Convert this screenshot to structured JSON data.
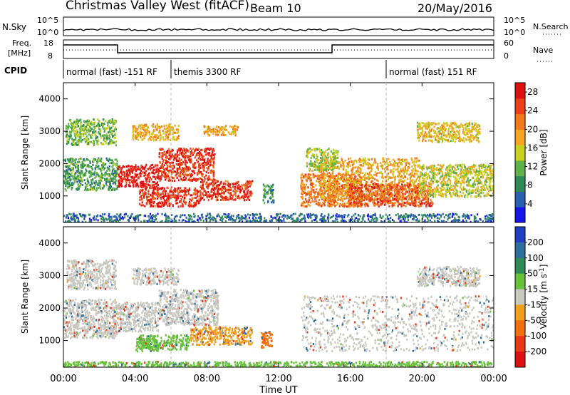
{
  "header": {
    "title": "Christmas Valley West (fitACF)",
    "beam": "Beam 10",
    "date": "20/May/2016"
  },
  "side_labels": {
    "nsky": "N.Sky",
    "nsearch": "N.Search",
    "freq_line1": "Freq.",
    "freq_line2": "[MHz]",
    "nave": "Nave",
    "cpid": "CPID"
  },
  "noise_ticks": {
    "top": "10^5",
    "bottom": "10^0"
  },
  "freq_ticks": {
    "left_top": "18",
    "left_bottom": "8",
    "right_top": "60",
    "right_bottom": "0"
  },
  "cpid_segments": [
    {
      "label": "normal (fast) -151 RF",
      "start_hour": 0,
      "end_hour": 6
    },
    {
      "label": "themis 3300 RF",
      "start_hour": 6,
      "end_hour": 18
    },
    {
      "label": "normal (fast) 151 RF",
      "start_hour": 18,
      "end_hour": 24
    }
  ],
  "chart_data": [
    {
      "type": "heatmap",
      "name": "power",
      "xlabel": "Time UT",
      "ylabel": "Slant Range [km]",
      "xlim": [
        0,
        24
      ],
      "ylim": [
        180,
        4500
      ],
      "x_ticks": [
        "00:00",
        "04:00",
        "08:00",
        "12:00",
        "16:00",
        "20:00",
        "00:00"
      ],
      "y_ticks": [
        1000,
        2000,
        3000,
        4000
      ],
      "colorbar": {
        "label": "Power [dB]",
        "ticks": [
          4,
          8,
          12,
          16,
          20,
          24,
          28
        ],
        "range": [
          0,
          30
        ],
        "colors": [
          "#1515e8",
          "#2a5fb0",
          "#2e8b57",
          "#5fb14a",
          "#c8d020",
          "#f5a623",
          "#f07b1e",
          "#e8401a",
          "#e01010"
        ]
      },
      "regions": [
        {
          "t0": 0.1,
          "t1": 2.9,
          "r0": 2600,
          "r1": 3400,
          "level": 12
        },
        {
          "t0": 0.0,
          "t1": 3.0,
          "r0": 1200,
          "r1": 2200,
          "level": 10
        },
        {
          "t0": 3.0,
          "t1": 5.3,
          "r0": 1300,
          "r1": 2000,
          "level": 28
        },
        {
          "t0": 5.3,
          "t1": 8.4,
          "r0": 1500,
          "r1": 2500,
          "level": 26
        },
        {
          "t0": 3.8,
          "t1": 6.4,
          "r0": 2750,
          "r1": 3250,
          "level": 18
        },
        {
          "t0": 7.8,
          "t1": 9.7,
          "r0": 2900,
          "r1": 3200,
          "level": 19
        },
        {
          "t0": 4.2,
          "t1": 7.6,
          "r0": 700,
          "r1": 1300,
          "level": 26
        },
        {
          "t0": 7.6,
          "t1": 10.5,
          "r0": 900,
          "r1": 1500,
          "level": 26
        },
        {
          "t0": 11.1,
          "t1": 11.7,
          "r0": 800,
          "r1": 1400,
          "level": 9
        },
        {
          "t0": 13.2,
          "t1": 16.6,
          "r0": 700,
          "r1": 1700,
          "level": 22
        },
        {
          "t0": 14.2,
          "t1": 19.8,
          "r0": 900,
          "r1": 2200,
          "level": 19
        },
        {
          "t0": 15.8,
          "t1": 20.6,
          "r0": 700,
          "r1": 1400,
          "level": 24
        },
        {
          "t0": 19.8,
          "t1": 24.0,
          "r0": 1000,
          "r1": 2000,
          "level": 15
        },
        {
          "t0": 13.5,
          "t1": 15.3,
          "r0": 1800,
          "r1": 2500,
          "level": 14
        },
        {
          "t0": 19.7,
          "t1": 23.2,
          "r0": 2700,
          "r1": 3300,
          "level": 17
        },
        {
          "t0": 0.0,
          "t1": 24.0,
          "r0": 180,
          "r1": 480,
          "level": 6
        }
      ]
    },
    {
      "type": "heatmap",
      "name": "velocity",
      "xlabel": "Time UT",
      "ylabel": "Slant Range [km]",
      "xlim": [
        0,
        24
      ],
      "ylim": [
        180,
        4500
      ],
      "x_ticks": [
        "00:00",
        "04:00",
        "08:00",
        "12:00",
        "16:00",
        "20:00",
        "00:00"
      ],
      "y_ticks": [
        1000,
        2000,
        3000,
        4000
      ],
      "colorbar": {
        "label": "Velocity [m s^-1]",
        "ticks": [
          200,
          100,
          50,
          15,
          -15,
          -50,
          -100,
          -200
        ],
        "colors": [
          "#1f3fbf",
          "#2e6e9e",
          "#2e8b57",
          "#66c23a",
          "#c8c8c0",
          "#f0a020",
          "#f07010",
          "#e83a1a",
          "#e01010"
        ]
      },
      "regions": [
        {
          "t0": 0.1,
          "t1": 2.9,
          "r0": 2600,
          "r1": 3500,
          "level": 0
        },
        {
          "t0": 0.0,
          "t1": 3.0,
          "r0": 1100,
          "r1": 2300,
          "level": 0
        },
        {
          "t0": 3.0,
          "t1": 5.3,
          "r0": 1300,
          "r1": 2200,
          "level": 0
        },
        {
          "t0": 5.3,
          "t1": 8.6,
          "r0": 1500,
          "r1": 2600,
          "level": 0
        },
        {
          "t0": 3.8,
          "t1": 6.4,
          "r0": 2750,
          "r1": 3250,
          "level": 0
        },
        {
          "t0": 4.2,
          "t1": 7.0,
          "r0": 750,
          "r1": 1200,
          "level": 30
        },
        {
          "t0": 7.0,
          "t1": 10.5,
          "r0": 900,
          "r1": 1450,
          "level": -40
        },
        {
          "t0": 4.0,
          "t1": 5.3,
          "r0": 700,
          "r1": 1100,
          "level": 25
        },
        {
          "t0": 11.0,
          "t1": 11.6,
          "r0": 800,
          "r1": 1300,
          "level": -60
        },
        {
          "t0": 13.2,
          "t1": 24.0,
          "r0": 700,
          "r1": 2400,
          "level": 0
        },
        {
          "t0": 19.7,
          "t1": 23.2,
          "r0": 2700,
          "r1": 3300,
          "level": 0
        },
        {
          "t0": 0.0,
          "t1": 24.0,
          "r0": 180,
          "r1": 380,
          "level": 25
        }
      ]
    }
  ]
}
